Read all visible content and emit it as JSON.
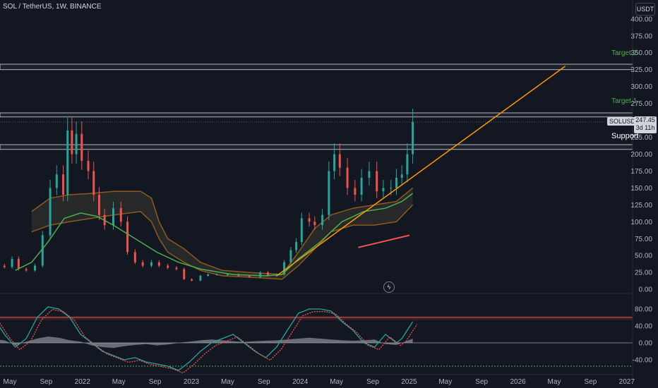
{
  "header": {
    "symbol_line": "SOL / TetherUS, 1W, BINANCE"
  },
  "currency_button": "USDT",
  "price_badge": {
    "symbol": "SOLUSDT",
    "price": "247.45",
    "countdown": "3d 11h"
  },
  "annotations": {
    "target2": "Target 2",
    "target1": "Target 1",
    "support": "Support"
  },
  "colors": {
    "background": "#131722",
    "up": "#26a69a",
    "down": "#ef5350",
    "trendline": "#ff9800",
    "ma": "#4caf50",
    "target_text": "#4caf50",
    "band": "#8d5a1c"
  },
  "chart_data": {
    "type": "candlestick",
    "symbol": "SOL / TetherUS, 1W, BINANCE",
    "yaxis_ticks": [
      400.0,
      375.0,
      350.0,
      325.0,
      300.0,
      275.0,
      250.0,
      225.0,
      200.0,
      175.0,
      150.0,
      125.0,
      100.0,
      75.0,
      50.0,
      25.0,
      0.0
    ],
    "ylim": [
      -4,
      405
    ],
    "xaxis_ticks": [
      "May",
      "Sep",
      "2022",
      "May",
      "Sep",
      "2023",
      "May",
      "Sep",
      "2024",
      "May",
      "Sep",
      "2025",
      "May",
      "Sep",
      "2026",
      "May",
      "Sep",
      "2027"
    ],
    "xaxis_start": 2021.25,
    "xaxis_step": 0.3333,
    "last_price": 247.45,
    "horizontal_zones": [
      {
        "label": "Target 2",
        "low": 325,
        "high": 333
      },
      {
        "label": "Target 1",
        "low": 255,
        "high": 261
      },
      {
        "label": "Support",
        "low": 207,
        "high": 214
      }
    ],
    "trendline": {
      "x": [
        2023.7,
        2026.35
      ],
      "y": [
        20,
        330
      ]
    },
    "red_line": {
      "x": [
        2024.45,
        2024.92
      ],
      "y": [
        62,
        80
      ]
    },
    "closes": [
      [
        2021.0,
        30
      ],
      [
        2021.1,
        35
      ],
      [
        2021.2,
        33
      ],
      [
        2021.27,
        45
      ],
      [
        2021.33,
        30
      ],
      [
        2021.4,
        28
      ],
      [
        2021.48,
        35
      ],
      [
        2021.55,
        80
      ],
      [
        2021.62,
        150
      ],
      [
        2021.68,
        170
      ],
      [
        2021.74,
        140
      ],
      [
        2021.78,
        235
      ],
      [
        2021.82,
        200
      ],
      [
        2021.86,
        230
      ],
      [
        2021.91,
        190
      ],
      [
        2021.97,
        175
      ],
      [
        2022.02,
        140
      ],
      [
        2022.07,
        110
      ],
      [
        2022.12,
        95
      ],
      [
        2022.2,
        120
      ],
      [
        2022.27,
        100
      ],
      [
        2022.33,
        55
      ],
      [
        2022.4,
        40
      ],
      [
        2022.47,
        35
      ],
      [
        2022.55,
        40
      ],
      [
        2022.62,
        35
      ],
      [
        2022.7,
        32
      ],
      [
        2022.78,
        30
      ],
      [
        2022.85,
        15
      ],
      [
        2022.92,
        13
      ],
      [
        2023.0,
        20
      ],
      [
        2023.07,
        22
      ],
      [
        2023.15,
        22
      ],
      [
        2023.25,
        22
      ],
      [
        2023.35,
        20
      ],
      [
        2023.45,
        18
      ],
      [
        2023.55,
        25
      ],
      [
        2023.62,
        20
      ],
      [
        2023.7,
        22
      ],
      [
        2023.77,
        40
      ],
      [
        2023.83,
        58
      ],
      [
        2023.88,
        70
      ],
      [
        2023.93,
        105
      ],
      [
        2024.0,
        100
      ],
      [
        2024.05,
        95
      ],
      [
        2024.12,
        110
      ],
      [
        2024.18,
        175
      ],
      [
        2024.23,
        200
      ],
      [
        2024.28,
        180
      ],
      [
        2024.35,
        150
      ],
      [
        2024.42,
        140
      ],
      [
        2024.48,
        165
      ],
      [
        2024.55,
        175
      ],
      [
        2024.62,
        145
      ],
      [
        2024.68,
        150
      ],
      [
        2024.75,
        150
      ],
      [
        2024.8,
        165
      ],
      [
        2024.85,
        170
      ],
      [
        2024.9,
        200
      ],
      [
        2024.95,
        247.45
      ]
    ],
    "moving_average": [
      [
        2021.3,
        28
      ],
      [
        2021.45,
        40
      ],
      [
        2021.6,
        70
      ],
      [
        2021.75,
        105
      ],
      [
        2021.9,
        113
      ],
      [
        2022.05,
        108
      ],
      [
        2022.2,
        95
      ],
      [
        2022.4,
        75
      ],
      [
        2022.6,
        55
      ],
      [
        2022.8,
        40
      ],
      [
        2023.0,
        30
      ],
      [
        2023.3,
        22
      ],
      [
        2023.6,
        20
      ],
      [
        2023.75,
        22
      ],
      [
        2023.9,
        45
      ],
      [
        2024.1,
        70
      ],
      [
        2024.3,
        100
      ],
      [
        2024.5,
        115
      ],
      [
        2024.7,
        120
      ],
      [
        2024.85,
        130
      ],
      [
        2024.95,
        142
      ]
    ],
    "band_upper": [
      [
        2021.45,
        115
      ],
      [
        2021.62,
        135
      ],
      [
        2021.8,
        140
      ],
      [
        2022.0,
        142
      ],
      [
        2022.2,
        145
      ],
      [
        2022.45,
        145
      ],
      [
        2022.55,
        135
      ],
      [
        2022.62,
        100
      ],
      [
        2022.7,
        75
      ],
      [
        2022.85,
        60
      ],
      [
        2023.0,
        40
      ],
      [
        2023.2,
        28
      ],
      [
        2023.45,
        25
      ],
      [
        2023.75,
        22
      ],
      [
        2023.9,
        55
      ],
      [
        2024.05,
        90
      ],
      [
        2024.2,
        110
      ],
      [
        2024.4,
        120
      ],
      [
        2024.6,
        125
      ],
      [
        2024.8,
        130
      ],
      [
        2024.95,
        150
      ]
    ],
    "band_lower": [
      [
        2021.45,
        85
      ],
      [
        2021.62,
        95
      ],
      [
        2021.8,
        100
      ],
      [
        2022.0,
        105
      ],
      [
        2022.2,
        110
      ],
      [
        2022.45,
        115
      ],
      [
        2022.55,
        100
      ],
      [
        2022.62,
        75
      ],
      [
        2022.7,
        55
      ],
      [
        2022.85,
        40
      ],
      [
        2023.0,
        28
      ],
      [
        2023.2,
        20
      ],
      [
        2023.45,
        18
      ],
      [
        2023.75,
        15
      ],
      [
        2023.9,
        35
      ],
      [
        2024.05,
        60
      ],
      [
        2024.2,
        85
      ],
      [
        2024.4,
        95
      ],
      [
        2024.6,
        95
      ],
      [
        2024.8,
        100
      ],
      [
        2024.95,
        125
      ]
    ],
    "oscillator": {
      "yaxis_ticks": [
        80.0,
        40.0,
        0.0,
        -40.0
      ],
      "ylim": [
        -70,
        110
      ],
      "upper_level": 60,
      "lower_level": -55,
      "main": [
        [
          2021.0,
          80
        ],
        [
          2021.1,
          60
        ],
        [
          2021.2,
          20
        ],
        [
          2021.3,
          -10
        ],
        [
          2021.4,
          10
        ],
        [
          2021.5,
          60
        ],
        [
          2021.6,
          85
        ],
        [
          2021.7,
          80
        ],
        [
          2021.8,
          60
        ],
        [
          2021.9,
          20
        ],
        [
          2022.0,
          0
        ],
        [
          2022.1,
          -20
        ],
        [
          2022.2,
          -30
        ],
        [
          2022.3,
          -40
        ],
        [
          2022.4,
          -35
        ],
        [
          2022.5,
          -45
        ],
        [
          2022.6,
          -50
        ],
        [
          2022.7,
          -55
        ],
        [
          2022.8,
          -65
        ],
        [
          2022.9,
          -45
        ],
        [
          2023.0,
          -20
        ],
        [
          2023.1,
          0
        ],
        [
          2023.2,
          10
        ],
        [
          2023.3,
          20
        ],
        [
          2023.4,
          0
        ],
        [
          2023.5,
          -20
        ],
        [
          2023.6,
          -35
        ],
        [
          2023.7,
          -10
        ],
        [
          2023.8,
          30
        ],
        [
          2023.9,
          70
        ],
        [
          2024.0,
          80
        ],
        [
          2024.1,
          80
        ],
        [
          2024.2,
          75
        ],
        [
          2024.3,
          50
        ],
        [
          2024.4,
          30
        ],
        [
          2024.5,
          0
        ],
        [
          2024.6,
          -10
        ],
        [
          2024.7,
          20
        ],
        [
          2024.8,
          0
        ],
        [
          2024.85,
          10
        ],
        [
          2024.95,
          50
        ]
      ],
      "histogram": [
        [
          2021.0,
          12
        ],
        [
          2021.1,
          8
        ],
        [
          2021.2,
          6
        ],
        [
          2021.3,
          -6
        ],
        [
          2021.4,
          3
        ],
        [
          2021.5,
          10
        ],
        [
          2021.6,
          15
        ],
        [
          2021.7,
          12
        ],
        [
          2021.8,
          6
        ],
        [
          2021.9,
          3
        ],
        [
          2022.0,
          -6
        ],
        [
          2022.1,
          -10
        ],
        [
          2022.2,
          -12
        ],
        [
          2022.3,
          -8
        ],
        [
          2022.4,
          -5
        ],
        [
          2022.5,
          -3
        ],
        [
          2022.6,
          -6
        ],
        [
          2022.7,
          -4
        ],
        [
          2022.8,
          0
        ],
        [
          2022.9,
          3
        ],
        [
          2023.0,
          6
        ],
        [
          2023.1,
          8
        ],
        [
          2023.2,
          6
        ],
        [
          2023.3,
          4
        ],
        [
          2023.4,
          2
        ],
        [
          2023.5,
          4
        ],
        [
          2023.6,
          5
        ],
        [
          2023.7,
          6
        ],
        [
          2023.8,
          8
        ],
        [
          2023.9,
          10
        ],
        [
          2024.0,
          12
        ],
        [
          2024.1,
          10
        ],
        [
          2024.2,
          8
        ],
        [
          2024.3,
          6
        ],
        [
          2024.4,
          5
        ],
        [
          2024.5,
          6
        ],
        [
          2024.6,
          8
        ],
        [
          2024.7,
          -3
        ],
        [
          2024.8,
          -5
        ],
        [
          2024.9,
          5
        ],
        [
          2024.95,
          10
        ]
      ]
    }
  }
}
